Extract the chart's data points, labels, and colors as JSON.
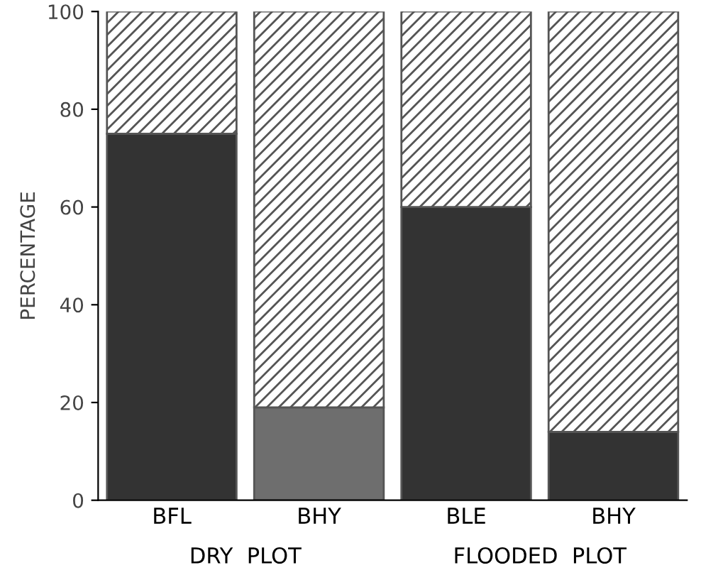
{
  "chart_data": {
    "type": "bar",
    "stacked": true,
    "ylabel": "PERCENTAGE",
    "categories": [
      "BFL",
      "BHY",
      "BLE",
      "BHY"
    ],
    "series": [
      {
        "colors": [
          "#333333",
          "#6e6e6e",
          "#333333",
          "#333333"
        ],
        "color": "#333333",
        "values": [
          75,
          19,
          60,
          14
        ]
      },
      {
        "color": "#555555",
        "values": [
          25,
          81,
          40,
          86
        ]
      }
    ],
    "ylim": [
      0,
      100
    ],
    "yticks": [
      0,
      20,
      40,
      60,
      80,
      100
    ],
    "grid": false,
    "legend": false,
    "annotations": [
      "DRY  PLOT",
      "FLOODED  PLOT"
    ]
  }
}
